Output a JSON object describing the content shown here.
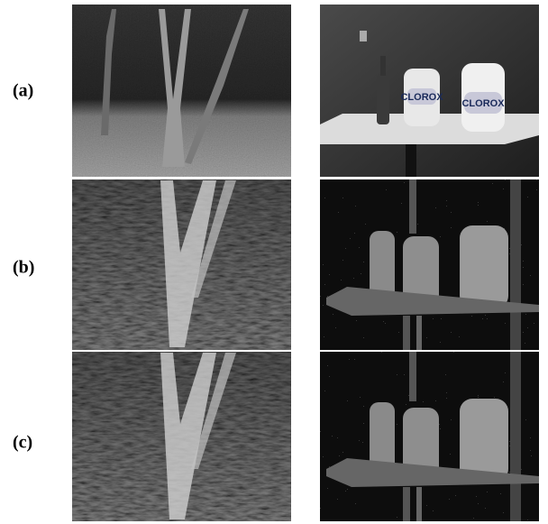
{
  "rows": [
    {
      "label": "(a)"
    },
    {
      "label": "(b)"
    },
    {
      "label": "(c)"
    }
  ],
  "image_text": [
    "CLOROX",
    "CLOROX"
  ]
}
